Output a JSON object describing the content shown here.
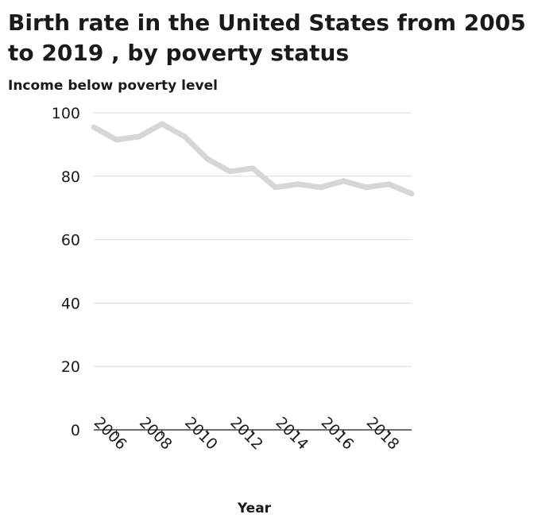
{
  "chart_data": {
    "type": "line",
    "title": "Birth rate in the United States from 2005 to 2019 , by poverty status",
    "ylabel": "Income below poverty level",
    "xlabel": "Year",
    "xlim": [
      2005,
      2019
    ],
    "ylim": [
      0,
      100
    ],
    "yticks": [
      0,
      20,
      40,
      60,
      80,
      100
    ],
    "xticks": [
      2006,
      2008,
      2010,
      2012,
      2014,
      2016,
      2018
    ],
    "grid": true,
    "x": [
      2005,
      2006,
      2007,
      2008,
      2009,
      2010,
      2011,
      2012,
      2013,
      2014,
      2015,
      2016,
      2017,
      2018,
      2019
    ],
    "series": [
      {
        "values": [
          95.5,
          91.5,
          92.5,
          96.5,
          92.5,
          85.5,
          81.5,
          82.5,
          76.5,
          77.5,
          76.5,
          78.5,
          76.5,
          77.5,
          74.5
        ],
        "color": "#d6d6d6"
      }
    ]
  }
}
